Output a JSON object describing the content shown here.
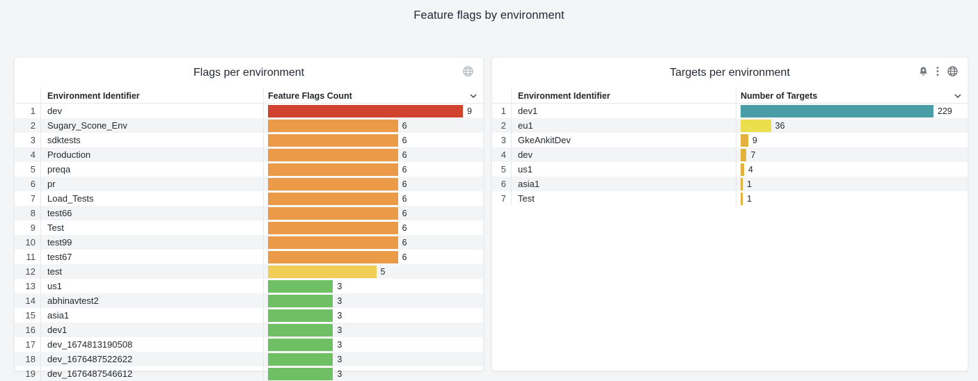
{
  "page": {
    "title": "Feature flags by environment",
    "background_color": "#f4f5f6",
    "panel_background": "#ffffff"
  },
  "panels": [
    {
      "title": "Flags per environment",
      "icons": [
        "globe-icon"
      ],
      "col_identifier": "Environment Identifier",
      "col_value": "Feature Flags Count",
      "header_icon": "chevron-down-icon"
    },
    {
      "title": "Targets per environment",
      "icons": [
        "bell-plus-icon",
        "kebab-menu-icon",
        "globe-icon"
      ],
      "col_identifier": "Environment Identifier",
      "col_value": "Number of Targets",
      "header_icon": "chevron-down-icon"
    }
  ],
  "chart_data": [
    {
      "type": "bar",
      "orientation": "horizontal",
      "title": "Flags per environment",
      "xlabel": "Feature Flags Count",
      "ylabel": "Environment Identifier",
      "legend": false,
      "grid": false,
      "max": 9,
      "categories": [
        "dev",
        "Sugary_Scone_Env",
        "sdktests",
        "Production",
        "preqa",
        "pr",
        "Load_Tests",
        "test66",
        "Test",
        "test99",
        "test67",
        "test",
        "us1",
        "abhinavtest2",
        "asia1",
        "dev1",
        "dev_1674813190508",
        "dev_1676487522622",
        "dev_1676487546612"
      ],
      "values": [
        9,
        6,
        6,
        6,
        6,
        6,
        6,
        6,
        6,
        6,
        6,
        5,
        3,
        3,
        3,
        3,
        3,
        3,
        3
      ],
      "colors": [
        "#d2432f",
        "#eb9b47",
        "#eb9b47",
        "#eb9b47",
        "#eb9b47",
        "#eb9b47",
        "#eb9b47",
        "#eb9b47",
        "#eb9b47",
        "#eb9b47",
        "#eb9b47",
        "#f0ce56",
        "#6fbf64",
        "#6fbf64",
        "#6fbf64",
        "#6fbf64",
        "#6fbf64",
        "#6fbf64",
        "#6fbf64"
      ]
    },
    {
      "type": "bar",
      "orientation": "horizontal",
      "title": "Targets per environment",
      "xlabel": "Number of Targets",
      "ylabel": "Environment Identifier",
      "legend": false,
      "grid": false,
      "max": 229,
      "categories": [
        "dev1",
        "eu1",
        "GkeAnkitDev",
        "dev",
        "us1",
        "asia1",
        "Test"
      ],
      "values": [
        229,
        36,
        9,
        7,
        4,
        1,
        1
      ],
      "colors": [
        "#4a9da6",
        "#ebdf4d",
        "#e2b23c",
        "#e2b23c",
        "#e2b23c",
        "#e2b23c",
        "#e2b23c"
      ]
    }
  ]
}
